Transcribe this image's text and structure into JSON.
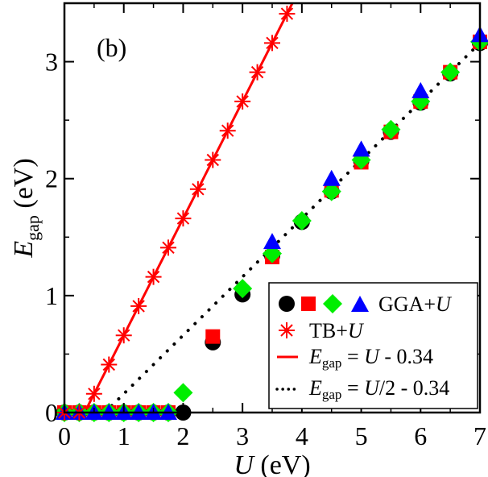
{
  "chart_data": {
    "type": "scatter",
    "panel_label": "(b)",
    "xlabel": "U (eV)",
    "ylabel": "E_gap (eV)",
    "xlim": [
      0,
      7
    ],
    "ylim": [
      0,
      3.5
    ],
    "xticks": [
      0,
      1,
      2,
      3,
      4,
      5,
      6,
      7
    ],
    "yticks": [
      0,
      1,
      2,
      3
    ],
    "grid": false,
    "legend_position": "bottom-right",
    "legend": {
      "gga_label": "GGA+U",
      "tb_label": "TB+U",
      "line_label": "E_gap = U - 0.34",
      "dotted_label": "E_gap = U/2 - 0.34"
    },
    "series": [
      {
        "name": "GGA+U circles",
        "marker": "circle",
        "color": "#000000",
        "x": [
          0,
          0.25,
          0.5,
          0.75,
          1,
          1.25,
          1.5,
          1.75,
          2,
          2.5,
          3,
          3.5,
          4,
          4.5,
          5,
          5.5,
          6,
          6.5,
          7
        ],
        "y": [
          0,
          0,
          0,
          0,
          0,
          0,
          0,
          0,
          0,
          0.6,
          1.01,
          1.34,
          1.63,
          1.89,
          2.15,
          2.4,
          2.65,
          2.9,
          3.16
        ]
      },
      {
        "name": "GGA+U squares",
        "marker": "square",
        "color": "#ff0000",
        "x": [
          0,
          0.25,
          0.5,
          0.75,
          1,
          1.25,
          1.5,
          1.75,
          2.5,
          3.5,
          4.5,
          5,
          5.5,
          6,
          6.5,
          7
        ],
        "y": [
          0,
          0,
          0,
          0,
          0,
          0,
          0,
          0,
          0.65,
          1.33,
          1.9,
          2.14,
          2.4,
          2.66,
          2.91,
          3.17
        ]
      },
      {
        "name": "GGA+U diamonds",
        "marker": "diamond",
        "color": "#00ee00",
        "x": [
          0,
          0.25,
          0.5,
          0.75,
          1,
          1.25,
          1.5,
          1.75,
          2,
          3,
          3.5,
          4,
          4.5,
          5,
          5.5,
          6,
          6.5,
          7
        ],
        "y": [
          0,
          0,
          0,
          0,
          0,
          0,
          0,
          0,
          0.17,
          1.06,
          1.36,
          1.64,
          1.89,
          2.16,
          2.42,
          2.66,
          2.91,
          3.17
        ]
      },
      {
        "name": "GGA+U triangles",
        "marker": "triangle",
        "color": "#0000ff",
        "x": [
          0,
          0.25,
          0.5,
          0.75,
          1,
          1.25,
          1.5,
          1.75,
          3.5,
          4.5,
          5,
          6,
          7
        ],
        "y": [
          0,
          0,
          0,
          0,
          0,
          0,
          0,
          0,
          1.46,
          2.0,
          2.25,
          2.75,
          3.23
        ]
      },
      {
        "name": "TB+U",
        "marker": "asterisk",
        "color": "#ff0000",
        "x": [
          0,
          0.25,
          0.5,
          0.75,
          1,
          1.25,
          1.5,
          1.75,
          2,
          2.25,
          2.5,
          2.75,
          3,
          3.25,
          3.5,
          3.75
        ],
        "y": [
          0,
          0,
          0.16,
          0.41,
          0.66,
          0.91,
          1.16,
          1.41,
          1.66,
          1.91,
          2.16,
          2.41,
          2.66,
          2.91,
          3.16,
          3.41
        ]
      }
    ],
    "lines": [
      {
        "name": "E_gap = U - 0.34",
        "style": "solid",
        "color": "#ff0000",
        "slope": 1,
        "intercept": -0.34
      },
      {
        "name": "E_gap = U/2 - 0.34",
        "style": "dotted",
        "color": "#000000",
        "slope": 0.5,
        "intercept": -0.34
      }
    ],
    "colors": {
      "red": "#ff0000",
      "green": "#00ee00",
      "blue": "#0000ff",
      "black": "#000000"
    }
  }
}
